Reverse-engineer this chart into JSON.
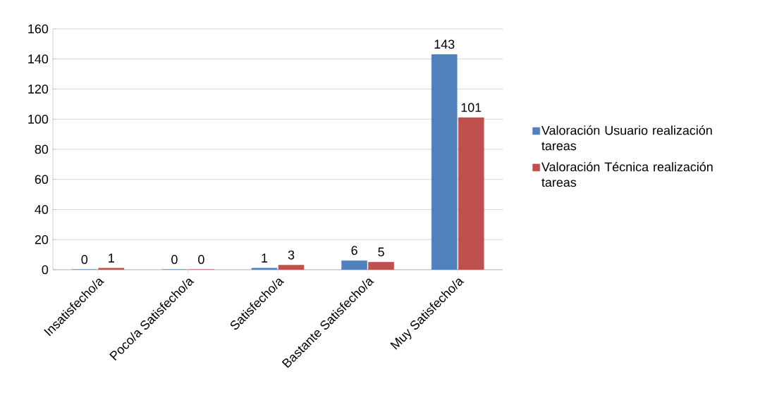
{
  "chart_data": {
    "type": "bar",
    "categories": [
      "Insatisfecho/a",
      "Poco/a Satisfecho/a",
      "Satisfecho/a",
      "Bastante Satisfecho/a",
      "Muy Satisfecho/a"
    ],
    "series": [
      {
        "name": "Valoración Usuario realización tareas",
        "color": "#4f81bd",
        "values": [
          0,
          0,
          1,
          6,
          143
        ]
      },
      {
        "name": "Valoración Técnica realización tareas",
        "color": "#c0504d",
        "values": [
          1,
          0,
          3,
          5,
          101
        ]
      }
    ],
    "ylim": [
      0,
      160
    ],
    "yticks": [
      0,
      20,
      40,
      60,
      80,
      100,
      120,
      140,
      160
    ],
    "grid": "y",
    "legend": "right",
    "data_labels": true
  }
}
